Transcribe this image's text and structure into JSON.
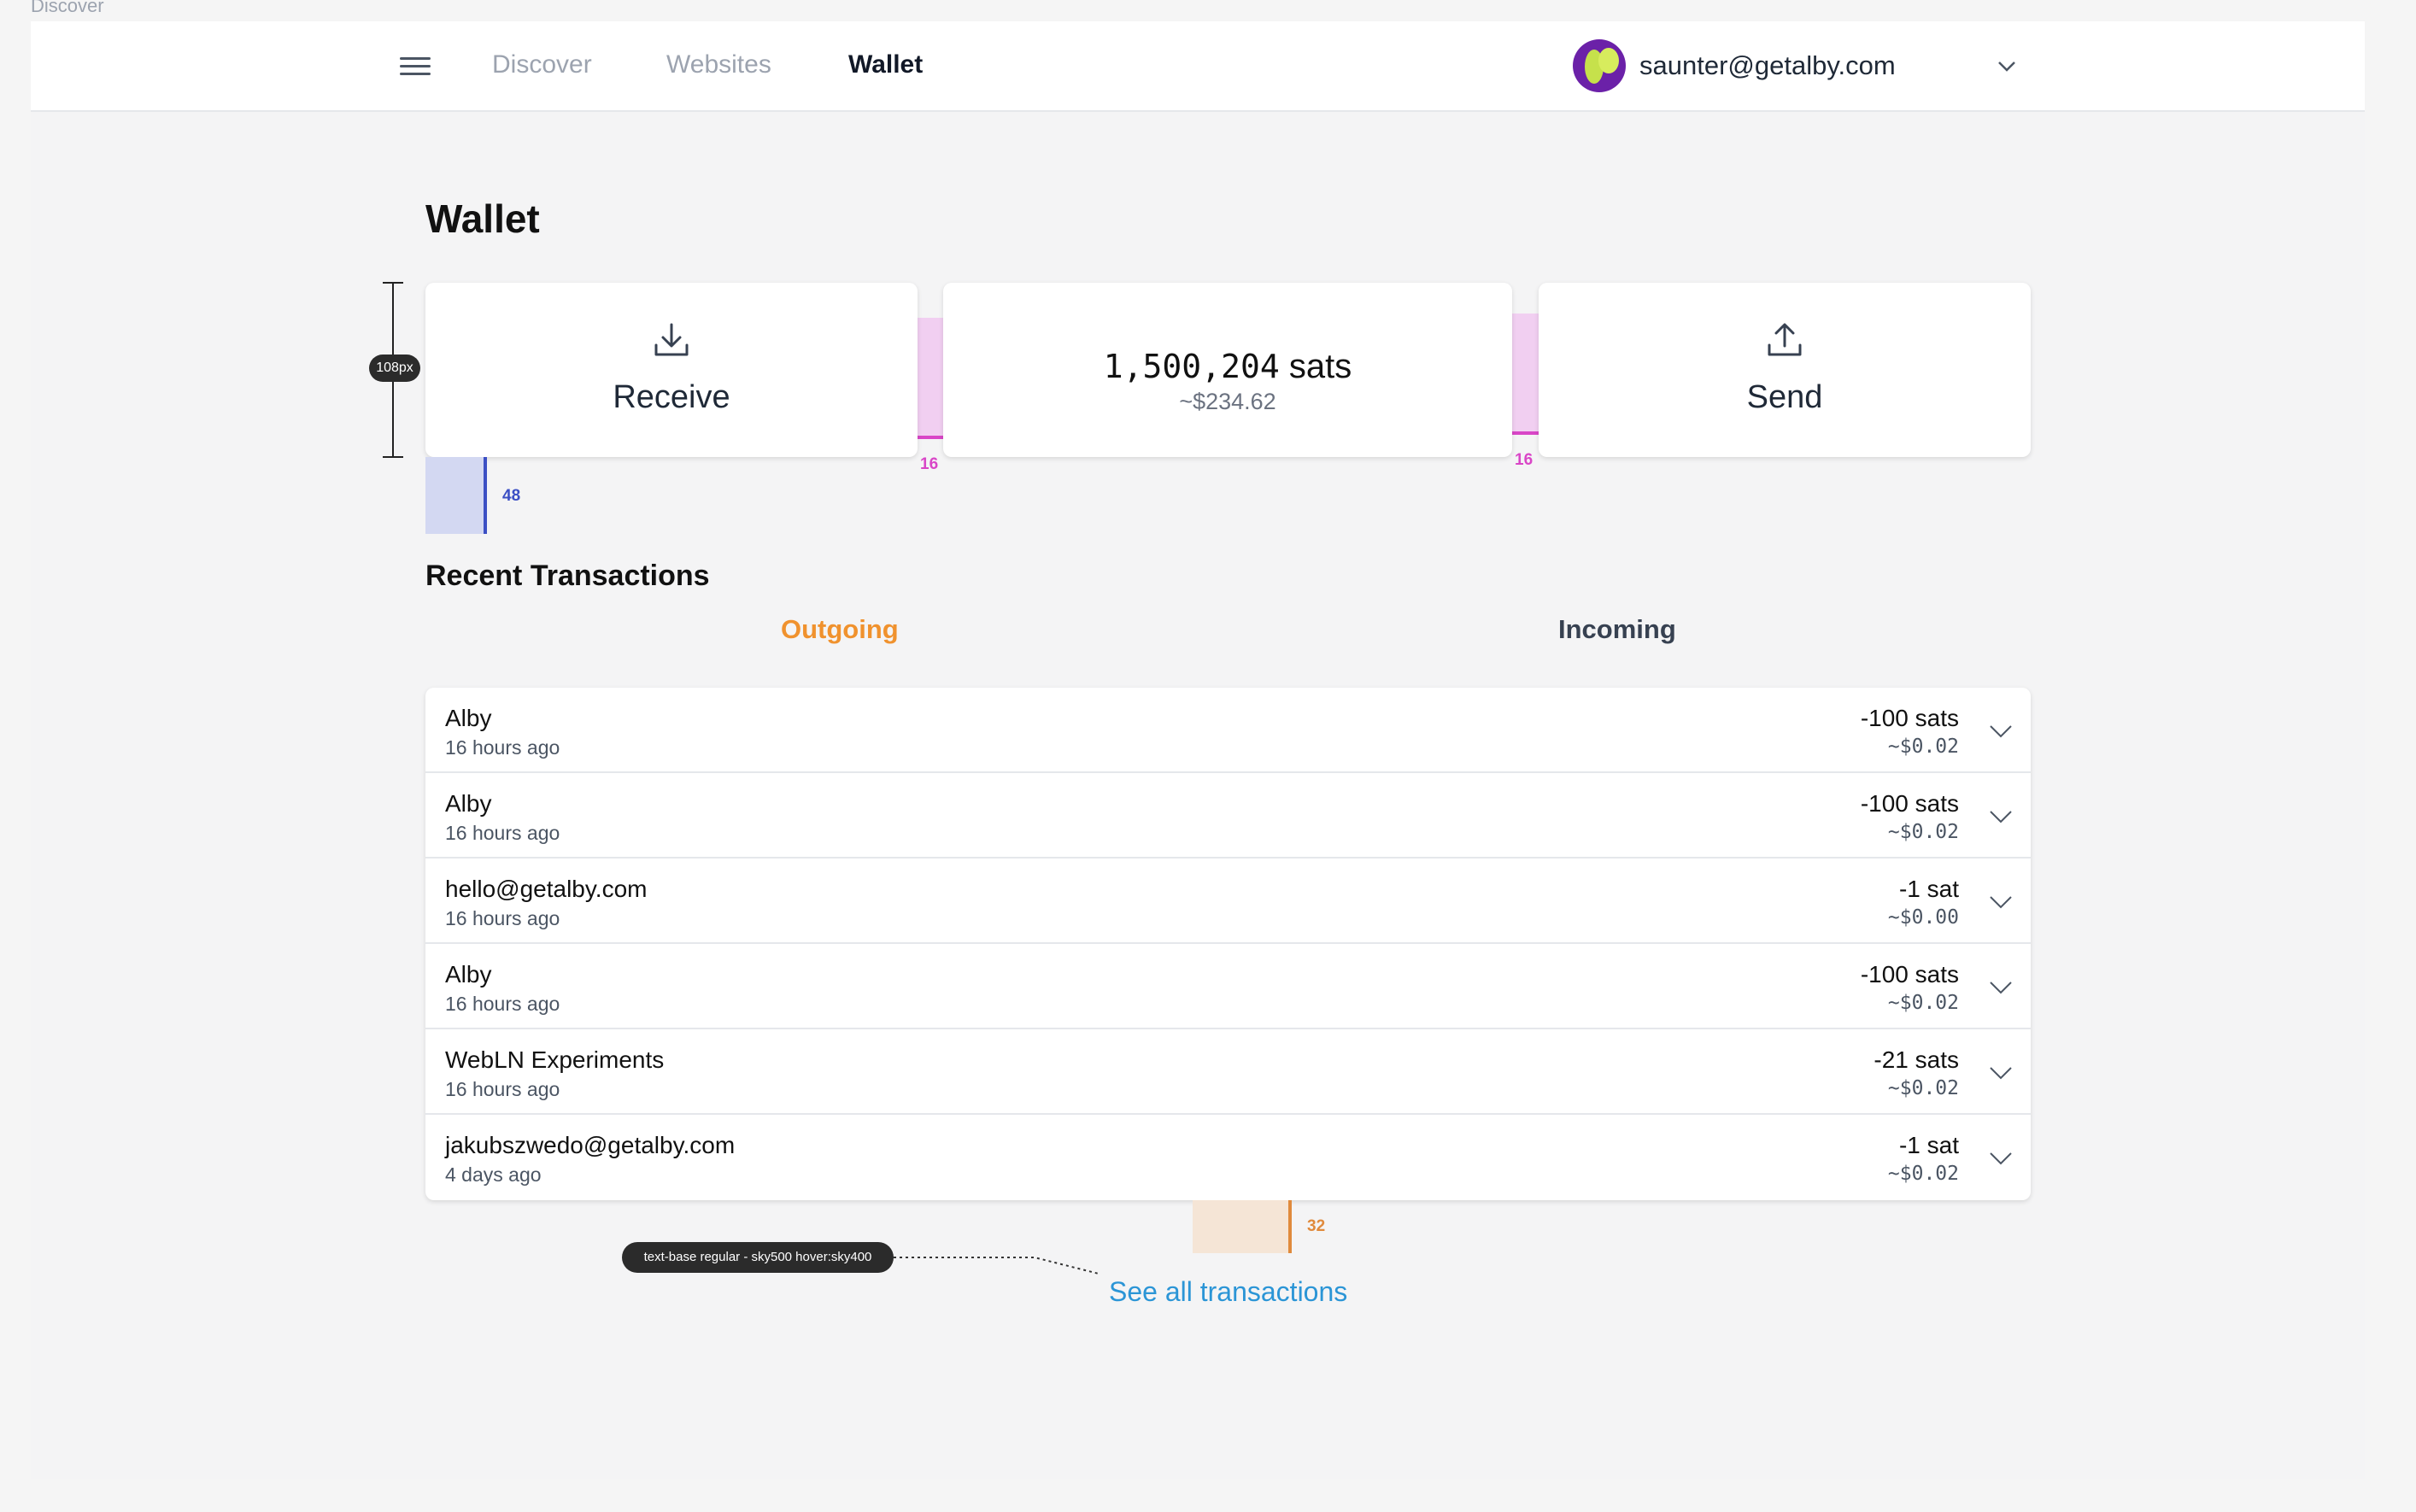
{
  "frame": {
    "label": "Discover"
  },
  "nav": {
    "links": [
      {
        "label": "Discover"
      },
      {
        "label": "Websites"
      },
      {
        "label": "Wallet"
      }
    ],
    "active": "Wallet",
    "account": {
      "email": "saunter@getalby.com"
    }
  },
  "page": {
    "title": "Wallet"
  },
  "actions": {
    "receive": {
      "label": "Receive",
      "icon": "download-icon"
    },
    "send": {
      "label": "Send",
      "icon": "upload-icon"
    }
  },
  "balance": {
    "sats_value": "1,500,204",
    "sats_unit": "sats",
    "usd": "~$234.62"
  },
  "annotations": {
    "height_badge": "108px",
    "gap_left": "16",
    "gap_right": "16",
    "spacing_below_cards": "48",
    "spacing_above_link": "32",
    "link_note": "text-base regular - sky500 hover:sky400"
  },
  "transactions": {
    "section_title": "Recent Transactions",
    "tabs": [
      {
        "label": "Outgoing",
        "active": true
      },
      {
        "label": "Incoming",
        "active": false
      }
    ],
    "items": [
      {
        "title": "Alby",
        "time": "16 hours ago",
        "amount": "-100",
        "unit": "sats",
        "usd": "~$0.02"
      },
      {
        "title": "Alby",
        "time": "16 hours ago",
        "amount": "-100",
        "unit": "sats",
        "usd": "~$0.02"
      },
      {
        "title": "hello@getalby.com",
        "time": "16 hours ago",
        "amount": "-1",
        "unit": "sat",
        "usd": "~$0.00"
      },
      {
        "title": "Alby",
        "time": "16 hours ago",
        "amount": "-100",
        "unit": "sats",
        "usd": "~$0.02"
      },
      {
        "title": "WebLN Experiments",
        "time": "16 hours ago",
        "amount": "-21",
        "unit": "sats",
        "usd": "~$0.02"
      },
      {
        "title": "jakubszwedo@getalby.com",
        "time": "4 days ago",
        "amount": "-1",
        "unit": "sat",
        "usd": "~$0.02"
      }
    ],
    "see_all_label": "See all transactions"
  },
  "colors": {
    "accent_outgoing": "#f0922e",
    "link": "#2b95d6",
    "annotation_pink": "#d946c7",
    "annotation_blue": "#3b4fc4",
    "annotation_orange": "#e08a3c"
  }
}
